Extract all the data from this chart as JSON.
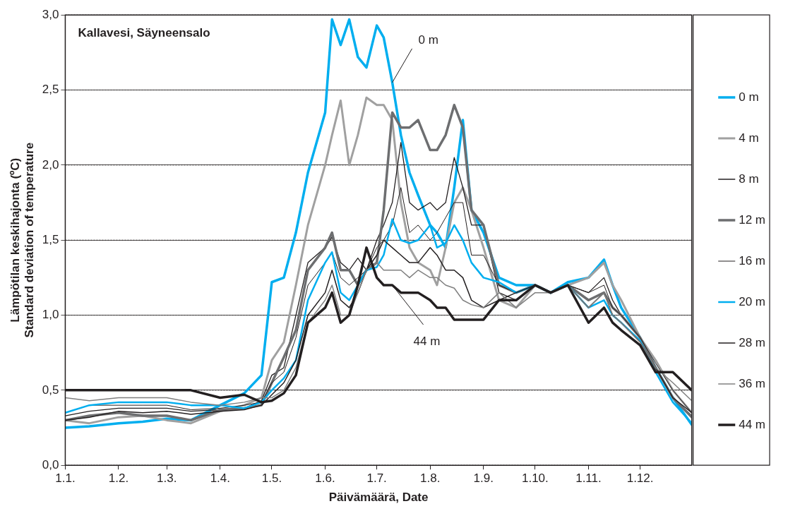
{
  "chart_data": {
    "type": "line",
    "title": "Kallavesi, Säyneensalo",
    "xlabel": "Päivämäärä, Date",
    "ylabel": "Lämpötilan keskihajonta (ºC)\nStandard deviation of temperature",
    "x": [
      "--01-01",
      "--01-15",
      "--02-01",
      "--02-15",
      "--03-01",
      "--03-15",
      "--04-01",
      "--04-15",
      "--04-25",
      "--05-01",
      "--05-08",
      "--05-15",
      "--05-22",
      "--06-01",
      "--06-05",
      "--06-10",
      "--06-15",
      "--06-20",
      "--06-25",
      "--07-01",
      "--07-05",
      "--07-10",
      "--07-15",
      "--07-20",
      "--07-25",
      "--08-01",
      "--08-05",
      "--08-10",
      "--08-15",
      "--08-20",
      "--08-25",
      "--09-01",
      "--09-10",
      "--09-20",
      "--10-01",
      "--10-10",
      "--10-20",
      "--11-01",
      "--11-10",
      "--11-15",
      "--11-20",
      "--12-01",
      "--12-10",
      "--12-20",
      "--12-31"
    ],
    "series": [
      {
        "name": "0 m",
        "color": "#00aeef",
        "values": [
          0.25,
          0.26,
          0.28,
          0.29,
          0.31,
          0.3,
          0.4,
          0.48,
          0.6,
          1.22,
          1.25,
          1.55,
          1.95,
          2.35,
          2.97,
          2.8,
          2.97,
          2.72,
          2.65,
          2.93,
          2.85,
          2.55,
          2.2,
          1.95,
          1.8,
          1.6,
          1.55,
          1.45,
          1.85,
          2.3,
          1.7,
          1.55,
          1.25,
          1.2,
          1.2,
          1.15,
          1.22,
          1.25,
          1.37,
          1.2,
          1.05,
          0.85,
          0.65,
          0.45,
          0.27
        ]
      },
      {
        "name": "4 m",
        "color": "#a0a0a0",
        "values": [
          0.3,
          0.28,
          0.32,
          0.33,
          0.3,
          0.28,
          0.36,
          0.4,
          0.45,
          0.7,
          0.82,
          1.2,
          1.6,
          2.0,
          2.2,
          2.43,
          2.0,
          2.2,
          2.45,
          2.4,
          2.4,
          2.3,
          1.75,
          1.45,
          1.35,
          1.3,
          1.2,
          1.45,
          1.75,
          1.85,
          1.7,
          1.45,
          1.1,
          1.05,
          1.2,
          1.15,
          1.2,
          1.25,
          1.35,
          1.2,
          1.1,
          0.85,
          0.7,
          0.5,
          0.35
        ]
      },
      {
        "name": "8 m",
        "color": "#231f20",
        "values": [
          0.33,
          0.36,
          0.38,
          0.38,
          0.38,
          0.36,
          0.37,
          0.38,
          0.43,
          0.6,
          0.65,
          1.0,
          1.35,
          1.45,
          1.52,
          1.35,
          1.3,
          1.38,
          1.3,
          1.5,
          1.6,
          1.75,
          2.15,
          1.75,
          1.7,
          1.75,
          1.7,
          1.75,
          2.05,
          1.85,
          1.6,
          1.6,
          1.15,
          1.1,
          1.2,
          1.15,
          1.2,
          1.15,
          1.25,
          1.1,
          1.0,
          0.85,
          0.65,
          0.45,
          0.33
        ]
      },
      {
        "name": "12 m",
        "color": "#6d6e70",
        "values": [
          0.3,
          0.33,
          0.35,
          0.33,
          0.33,
          0.3,
          0.37,
          0.38,
          0.4,
          0.55,
          0.72,
          0.9,
          1.3,
          1.45,
          1.55,
          1.3,
          1.3,
          1.2,
          1.3,
          1.35,
          1.7,
          2.35,
          2.25,
          2.25,
          2.3,
          2.1,
          2.1,
          2.2,
          2.4,
          2.25,
          1.7,
          1.6,
          1.2,
          1.15,
          1.2,
          1.15,
          1.2,
          1.1,
          1.15,
          1.05,
          1.0,
          0.85,
          0.65,
          0.45,
          0.32
        ]
      },
      {
        "name": "16 m",
        "color": "#231f20",
        "values": [
          0.35,
          0.4,
          0.4,
          0.4,
          0.4,
          0.37,
          0.38,
          0.4,
          0.42,
          0.55,
          0.62,
          0.85,
          1.2,
          1.35,
          1.42,
          1.25,
          1.2,
          1.25,
          1.3,
          1.45,
          1.5,
          1.6,
          1.85,
          1.55,
          1.6,
          1.5,
          1.55,
          1.65,
          1.75,
          1.75,
          1.4,
          1.4,
          1.2,
          1.15,
          1.2,
          1.15,
          1.2,
          1.15,
          1.2,
          1.05,
          1.0,
          0.85,
          0.68,
          0.5,
          0.35
        ]
      },
      {
        "name": "20 m",
        "color": "#00aeef",
        "values": [
          0.35,
          0.4,
          0.42,
          0.42,
          0.42,
          0.4,
          0.4,
          0.38,
          0.42,
          0.5,
          0.58,
          0.7,
          1.1,
          1.35,
          1.42,
          1.15,
          1.1,
          1.2,
          1.3,
          1.32,
          1.4,
          1.64,
          1.5,
          1.48,
          1.5,
          1.6,
          1.45,
          1.48,
          1.6,
          1.5,
          1.35,
          1.25,
          1.22,
          1.15,
          1.2,
          1.15,
          1.2,
          1.05,
          1.1,
          1.0,
          0.95,
          0.83,
          0.62,
          0.42,
          0.28
        ]
      },
      {
        "name": "28 m",
        "color": "#231f20",
        "values": [
          0.3,
          0.32,
          0.36,
          0.35,
          0.36,
          0.34,
          0.36,
          0.37,
          0.4,
          0.47,
          0.55,
          0.7,
          1.0,
          1.15,
          1.3,
          1.1,
          1.05,
          1.15,
          1.3,
          1.4,
          1.5,
          1.45,
          1.4,
          1.35,
          1.35,
          1.45,
          1.4,
          1.3,
          1.3,
          1.25,
          1.1,
          1.05,
          1.1,
          1.15,
          1.2,
          1.15,
          1.2,
          1.05,
          1.15,
          1.0,
          0.95,
          0.82,
          0.65,
          0.45,
          0.35
        ]
      },
      {
        "name": "36 m",
        "color": "#808080",
        "values": [
          0.45,
          0.43,
          0.45,
          0.45,
          0.45,
          0.42,
          0.4,
          0.42,
          0.45,
          0.45,
          0.5,
          0.65,
          0.95,
          1.1,
          1.2,
          1.0,
          1.0,
          1.15,
          1.3,
          1.35,
          1.3,
          1.3,
          1.3,
          1.25,
          1.3,
          1.25,
          1.25,
          1.2,
          1.18,
          1.1,
          1.07,
          1.05,
          1.15,
          1.05,
          1.15,
          1.15,
          1.2,
          1.05,
          1.15,
          1.0,
          0.95,
          0.82,
          0.65,
          0.55,
          0.43
        ]
      },
      {
        "name": "44 m",
        "color": "#231f20",
        "values": [
          0.5,
          0.5,
          0.5,
          0.5,
          0.5,
          0.5,
          0.45,
          0.47,
          0.42,
          0.43,
          0.48,
          0.6,
          0.95,
          1.05,
          1.15,
          0.95,
          1.0,
          1.2,
          1.45,
          1.25,
          1.2,
          1.2,
          1.15,
          1.15,
          1.15,
          1.1,
          1.05,
          1.05,
          0.97,
          0.97,
          0.97,
          0.97,
          1.1,
          1.1,
          1.2,
          1.15,
          1.2,
          0.95,
          1.05,
          0.95,
          0.9,
          0.8,
          0.62,
          0.62,
          0.5
        ]
      }
    ],
    "xlim": [
      "--01-01",
      "--12-31"
    ],
    "xticks": [
      {
        "value": "--01-01",
        "label": "1.1."
      },
      {
        "value": "--02-01",
        "label": "1.2."
      },
      {
        "value": "--03-01",
        "label": "1.3."
      },
      {
        "value": "--04-01",
        "label": "1.4."
      },
      {
        "value": "--05-01",
        "label": "1.5."
      },
      {
        "value": "--06-01",
        "label": "1.6."
      },
      {
        "value": "--07-01",
        "label": "1.7."
      },
      {
        "value": "--08-01",
        "label": "1.8."
      },
      {
        "value": "--09-01",
        "label": "1.9."
      },
      {
        "value": "--10-01",
        "label": "1.10."
      },
      {
        "value": "--11-01",
        "label": "1.11."
      },
      {
        "value": "--12-01",
        "label": "1.12."
      }
    ],
    "ylim": [
      0,
      3
    ],
    "yticks": [
      {
        "value": 0,
        "label": "0,0"
      },
      {
        "value": 0.5,
        "label": "0,5"
      },
      {
        "value": 1,
        "label": "1,0"
      },
      {
        "value": 1.5,
        "label": "1,5"
      },
      {
        "value": 2,
        "label": "2,0"
      },
      {
        "value": 2.5,
        "label": "2,5"
      },
      {
        "value": 3,
        "label": "3,0"
      }
    ],
    "grid": "y",
    "legend": "right",
    "marker": "none",
    "line_style": "solid",
    "annotations": [
      {
        "text": "0 m",
        "x": "--07-10",
        "y": 2.55
      },
      {
        "text": "44 m",
        "x": "--07-10",
        "y": 1.2
      }
    ]
  }
}
